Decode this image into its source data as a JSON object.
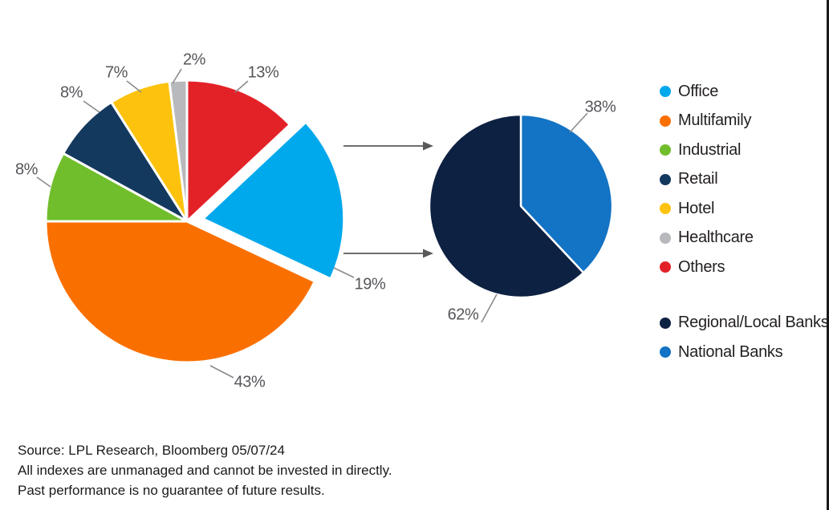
{
  "chart_data": [
    {
      "type": "pie",
      "name": "CRE loans by property type",
      "start_angle_deg": 0,
      "direction": "clockwise",
      "slices": [
        {
          "name": "Others",
          "value": 13,
          "pct": "13%",
          "color": "#E32228",
          "exploded": false
        },
        {
          "name": "Office",
          "value": 19,
          "pct": "19%",
          "color": "#00A8EC",
          "exploded": true
        },
        {
          "name": "Multifamily",
          "value": 43,
          "pct": "43%",
          "color": "#FA7000",
          "exploded": false
        },
        {
          "name": "Industrial",
          "value": 8,
          "pct": "8%",
          "color": "#70BE2B",
          "exploded": false
        },
        {
          "name": "Retail",
          "value": 8,
          "pct": "8%",
          "color": "#14395E",
          "exploded": false
        },
        {
          "name": "Hotel",
          "value": 7,
          "pct": "7%",
          "color": "#FCC20D",
          "exploded": false
        },
        {
          "name": "Healthcare",
          "value": 2,
          "pct": "2%",
          "color": "#B7B9BC",
          "exploded": false
        }
      ]
    },
    {
      "type": "pie",
      "name": "CRE lending by bank type",
      "start_angle_deg": 0,
      "direction": "clockwise",
      "slices": [
        {
          "name": "National Banks",
          "value": 38,
          "pct": "38%",
          "color": "#1373C4",
          "exploded": false
        },
        {
          "name": "Regional/Local Banks",
          "value": 62,
          "pct": "62%",
          "color": "#0D2142",
          "exploded": false
        }
      ]
    }
  ],
  "legend": {
    "property_types": [
      {
        "label": "Office",
        "color": "#00A8EC"
      },
      {
        "label": "Multifamily",
        "color": "#FA7000"
      },
      {
        "label": "Industrial",
        "color": "#70BE2B"
      },
      {
        "label": "Retail",
        "color": "#14395E"
      },
      {
        "label": "Hotel",
        "color": "#FCC20D"
      },
      {
        "label": "Healthcare",
        "color": "#B7B9BC"
      },
      {
        "label": "Others",
        "color": "#E32228"
      }
    ],
    "bank_types": [
      {
        "label": "Regional/Local Banks",
        "color": "#0D2142"
      },
      {
        "label": "National Banks",
        "color": "#1373C4"
      }
    ]
  },
  "footer": {
    "line1": "Source: LPL Research, Bloomberg 05/07/24",
    "line2": "All indexes are unmanaged and cannot be invested in directly.",
    "line3": "Past performance is no guarantee of future results."
  },
  "colors": {
    "leader_line": "#8A8B8E",
    "arrow": "#58595B",
    "pct_text": "#55565A",
    "border": "#1A1A1A"
  }
}
